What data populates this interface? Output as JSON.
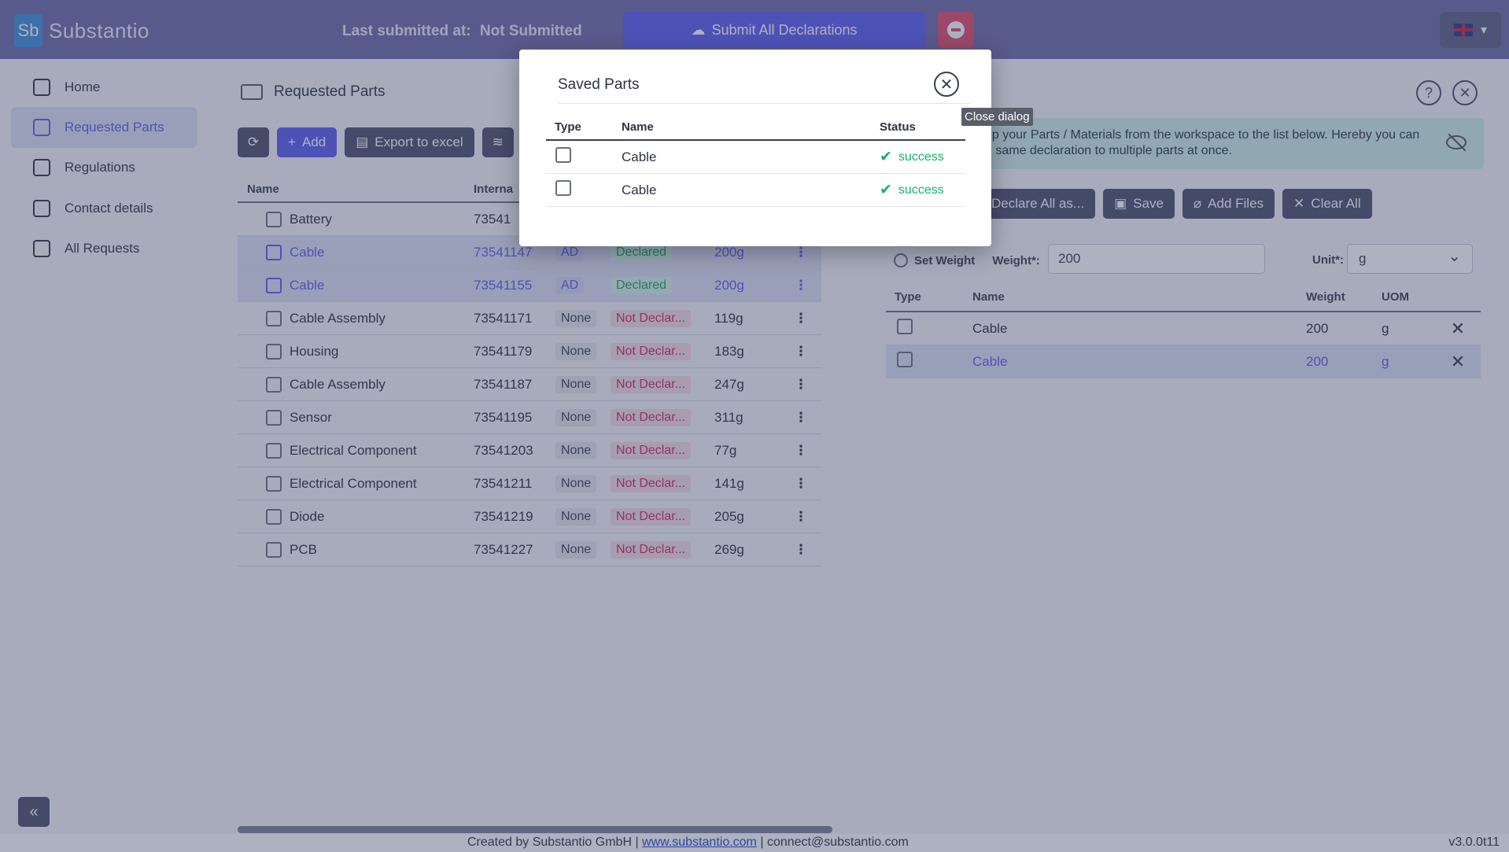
{
  "app": {
    "brand": "Substantio",
    "logo_text": "Sb"
  },
  "header": {
    "last_submitted_label": "Last submitted at:",
    "last_submitted_value": "Not Submitted",
    "submit_all_label": "Submit All Declarations"
  },
  "sidebar": {
    "items": [
      {
        "label": "Home"
      },
      {
        "label": "Requested Parts"
      },
      {
        "label": "Regulations"
      },
      {
        "label": "Contact details"
      },
      {
        "label": "All Requests"
      }
    ],
    "collapse_glyph": "«"
  },
  "main": {
    "title": "Requested Parts",
    "toolbar": {
      "add": "Add",
      "export": "Export to excel"
    },
    "columns": {
      "name": "Name",
      "internal": "Interna"
    },
    "rows": [
      {
        "name": "Battery",
        "id": "73541",
        "type": "",
        "status": "",
        "weight": ""
      },
      {
        "name": "Cable",
        "id": "73541147",
        "type": "AD",
        "status": "Declared",
        "weight": "200g"
      },
      {
        "name": "Cable",
        "id": "73541155",
        "type": "AD",
        "status": "Declared",
        "weight": "200g"
      },
      {
        "name": "Cable Assembly",
        "id": "73541171",
        "type": "None",
        "status": "Not Declar...",
        "weight": "119g"
      },
      {
        "name": "Housing",
        "id": "73541179",
        "type": "None",
        "status": "Not Declar...",
        "weight": "183g"
      },
      {
        "name": "Cable Assembly",
        "id": "73541187",
        "type": "None",
        "status": "Not Declar...",
        "weight": "247g"
      },
      {
        "name": "Sensor",
        "id": "73541195",
        "type": "None",
        "status": "Not Declar...",
        "weight": "311g"
      },
      {
        "name": "Electrical Component",
        "id": "73541203",
        "type": "None",
        "status": "Not Declar...",
        "weight": "77g"
      },
      {
        "name": "Electrical Component",
        "id": "73541211",
        "type": "None",
        "status": "Not Declar...",
        "weight": "141g"
      },
      {
        "name": "Diode",
        "id": "73541219",
        "type": "None",
        "status": "Not Declar...",
        "weight": "205g"
      },
      {
        "name": "PCB",
        "id": "73541227",
        "type": "None",
        "status": "Not Declar...",
        "weight": "269g"
      }
    ]
  },
  "right": {
    "info_text_1": "op your Parts / Materials from the workspace to the list below. Hereby you can",
    "info_text_2": "e same declaration to multiple parts at once.",
    "toolbar": {
      "declare_all": "Declare All as...",
      "save": "Save",
      "add_files": "Add Files",
      "clear_all": "Clear All"
    },
    "set_weight_label": "Set Weight",
    "weight_label": "Weight*:",
    "weight_value": "200",
    "unit_label": "Unit*:",
    "unit_value": "g",
    "columns": {
      "type": "Type",
      "name": "Name",
      "weight": "Weight",
      "uom": "UOM"
    },
    "rows": [
      {
        "name": "Cable",
        "weight": "200",
        "uom": "g"
      },
      {
        "name": "Cable",
        "weight": "200",
        "uom": "g"
      }
    ]
  },
  "dialog": {
    "title": "Saved Parts",
    "tooltip": "Close dialog",
    "columns": {
      "type": "Type",
      "name": "Name",
      "status": "Status"
    },
    "rows": [
      {
        "name": "Cable",
        "status": "success"
      },
      {
        "name": "Cable",
        "status": "success"
      }
    ]
  },
  "footer": {
    "created_by": "Created by Substantio GmbH |",
    "link": "www.substantio.com",
    "contact": "| connect@substantio.com",
    "version": "v3.0.0t11"
  },
  "colors": {
    "accent": "#5a5cf0",
    "success": "#18b26b",
    "danger": "#e14b6b",
    "topbar": "#6e6aa6"
  }
}
